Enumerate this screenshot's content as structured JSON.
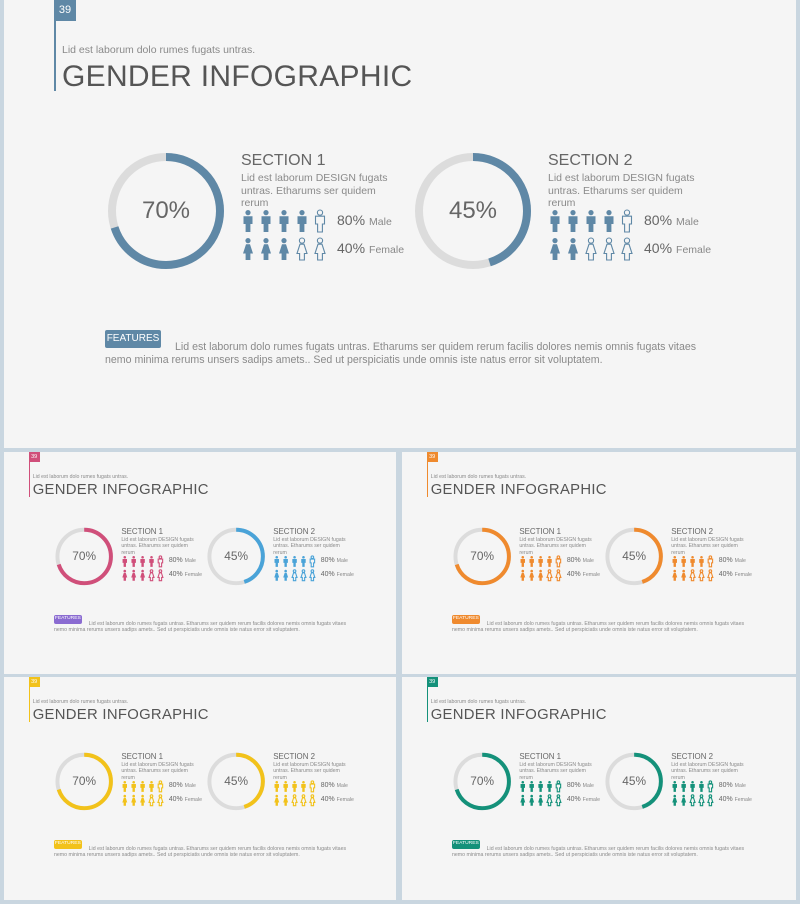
{
  "slides": [
    {
      "page_number": "39",
      "subtitle": "Lid est laborum dolo rumes fugats untras.",
      "title": "GENDER INFOGRAPHIC",
      "accent": "#5f88a6",
      "sections": [
        {
          "heading": "SECTION 1",
          "description": "Lid est laborum DESIGN fugats untras. Etharums ser quidem rerum",
          "ring_percent": "70%",
          "ring_value": 0.7,
          "male_pct": "80%",
          "male_label": "Male",
          "female_pct": "40%",
          "female_label": "Female"
        },
        {
          "heading": "SECTION 2",
          "description": "Lid est laborum DESIGN fugats untras. Etharums ser quidem rerum",
          "ring_percent": "45%",
          "ring_value": 0.45,
          "male_pct": "80%",
          "male_label": "Male",
          "female_pct": "40%",
          "female_label": "Female"
        }
      ],
      "features_label": "FEATURES",
      "features_text": "Lid est laborum dolo rumes fugats untras. Etharums ser quidem rerum facilis dolores nemis omnis fugats vitaes nemo minima rerums unsers sadips amets.. Sed ut perspiciatis unde omnis iste natus error sit voluptatem."
    },
    {
      "page_number": "39",
      "subtitle": "Lid est laborum dolo rumes fugats untras.",
      "title": "GENDER INFOGRAPHIC",
      "accent": "#d04f7a",
      "accent2": "#4aa3d8",
      "badge_color": "#8a6bd1",
      "sections": [
        {
          "heading": "SECTION 1",
          "description": "Lid est laborum DESIGN fugats untras. Etharums ser quidem rerum",
          "ring_percent": "70%",
          "ring_value": 0.7,
          "male_pct": "80%",
          "male_label": "Male",
          "female_pct": "40%",
          "female_label": "Female"
        },
        {
          "heading": "SECTION 2",
          "description": "Lid est laborum DESIGN fugats untras. Etharums ser quidem rerum",
          "ring_percent": "45%",
          "ring_value": 0.45,
          "male_pct": "80%",
          "male_label": "Male",
          "female_pct": "40%",
          "female_label": "Female"
        }
      ],
      "features_label": "FEATURES",
      "features_text": "Lid est laborum dolo rumes fugats untras. Etharums ser quidem rerum facilis dolores nemis omnis fugats vitaes nemo minima rerums unsers sadips amets.. Sed ut perspiciatis unde omnis iste natus error sit voluptatem."
    },
    {
      "page_number": "39",
      "subtitle": "Lid est laborum dolo rumes fugats untras.",
      "title": "GENDER INFOGRAPHIC",
      "accent": "#ef8a2e",
      "sections": [
        {
          "heading": "SECTION 1",
          "description": "Lid est laborum DESIGN fugats untras. Etharums ser quidem rerum",
          "ring_percent": "70%",
          "ring_value": 0.7,
          "male_pct": "80%",
          "male_label": "Male",
          "female_pct": "40%",
          "female_label": "Female"
        },
        {
          "heading": "SECTION 2",
          "description": "Lid est laborum DESIGN fugats untras. Etharums ser quidem rerum",
          "ring_percent": "45%",
          "ring_value": 0.45,
          "male_pct": "80%",
          "male_label": "Male",
          "female_pct": "40%",
          "female_label": "Female"
        }
      ],
      "features_label": "FEATURES",
      "features_text": "Lid est laborum dolo rumes fugats untras. Etharums ser quidem rerum facilis dolores nemis omnis fugats vitaes nemo minima rerums unsers sadips amets.. Sed ut perspiciatis unde omnis iste natus error sit voluptatem."
    },
    {
      "page_number": "39",
      "subtitle": "Lid est laborum dolo rumes fugats untras.",
      "title": "GENDER INFOGRAPHIC",
      "accent": "#f2c21a",
      "sections": [
        {
          "heading": "SECTION 1",
          "description": "Lid est laborum DESIGN fugats untras. Etharums ser quidem rerum",
          "ring_percent": "70%",
          "ring_value": 0.7,
          "male_pct": "80%",
          "male_label": "Male",
          "female_pct": "40%",
          "female_label": "Female"
        },
        {
          "heading": "SECTION 2",
          "description": "Lid est laborum DESIGN fugats untras. Etharums ser quidem rerum",
          "ring_percent": "45%",
          "ring_value": 0.45,
          "male_pct": "80%",
          "male_label": "Male",
          "female_pct": "40%",
          "female_label": "Female"
        }
      ],
      "features_label": "FEATURES",
      "features_text": "Lid est laborum dolo rumes fugats untras. Etharums ser quidem rerum facilis dolores nemis omnis fugats vitaes nemo minima rerums unsers sadips amets.. Sed ut perspiciatis unde omnis iste natus error sit voluptatem."
    },
    {
      "page_number": "39",
      "subtitle": "Lid est laborum dolo rumes fugats untras.",
      "title": "GENDER INFOGRAPHIC",
      "accent": "#14917a",
      "sections": [
        {
          "heading": "SECTION 1",
          "description": "Lid est laborum DESIGN fugats untras. Etharums ser quidem rerum",
          "ring_percent": "70%",
          "ring_value": 0.7,
          "male_pct": "80%",
          "male_label": "Male",
          "female_pct": "40%",
          "female_label": "Female"
        },
        {
          "heading": "SECTION 2",
          "description": "Lid est laborum DESIGN fugats untras. Etharums ser quidem rerum",
          "ring_percent": "45%",
          "ring_value": 0.45,
          "male_pct": "80%",
          "male_label": "Male",
          "female_pct": "40%",
          "female_label": "Female"
        }
      ],
      "features_label": "FEATURES",
      "features_text": "Lid est laborum dolo rumes fugats untras. Etharums ser quidem rerum facilis dolores nemis omnis fugats vitaes nemo minima rerums unsers sadips amets.. Sed ut perspiciatis unde omnis iste natus error sit voluptatem."
    }
  ]
}
